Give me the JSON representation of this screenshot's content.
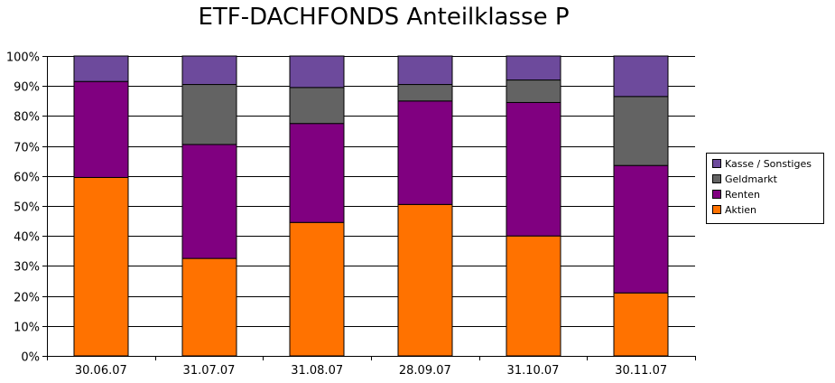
{
  "chart_data": {
    "type": "bar",
    "stacked": true,
    "percent": true,
    "title": "ETF-DACHFONDS Anteilklasse P",
    "xlabel": "",
    "ylabel": "",
    "ylim": [
      0,
      100
    ],
    "yticks": [
      "0%",
      "10%",
      "20%",
      "30%",
      "40%",
      "50%",
      "60%",
      "70%",
      "80%",
      "90%",
      "100%"
    ],
    "grid": true,
    "legend_position": "right",
    "categories": [
      "30.06.07",
      "31.07.07",
      "31.08.07",
      "28.09.07",
      "31.10.07",
      "30.11.07"
    ],
    "series": [
      {
        "name": "Aktien",
        "color": "#ff7200",
        "values": [
          59.5,
          32.5,
          44.5,
          50.5,
          40,
          21
        ]
      },
      {
        "name": "Renten",
        "color": "#800080",
        "values": [
          32,
          38,
          33,
          34.5,
          44.5,
          42.5
        ]
      },
      {
        "name": "Geldmarkt",
        "color": "#636363",
        "values": [
          0,
          20,
          12,
          5.5,
          7.5,
          23
        ]
      },
      {
        "name": "Kasse / Sonstiges",
        "color": "#6d4a9c",
        "values": [
          8.5,
          9.5,
          10.5,
          9.5,
          8,
          13.5
        ]
      }
    ],
    "legend_order": [
      "Kasse / Sonstiges",
      "Geldmarkt",
      "Renten",
      "Aktien"
    ]
  }
}
